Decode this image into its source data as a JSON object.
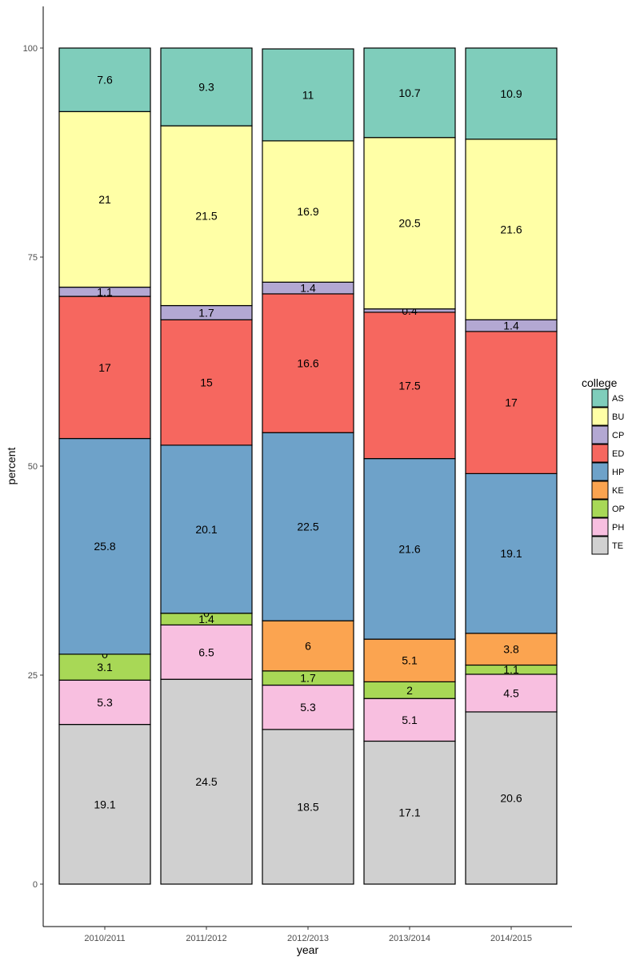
{
  "chart_data": {
    "type": "bar",
    "stacked": true,
    "xlabel": "year",
    "ylabel": "percent",
    "ylim": [
      -4,
      104
    ],
    "yticks": [
      0,
      25,
      50,
      75,
      100
    ],
    "grid": false,
    "legend": {
      "title": "college",
      "placement": "right"
    },
    "categories": [
      "2010/2011",
      "2011/2012",
      "2012/2013",
      "2013/2014",
      "2014/2015"
    ],
    "stack_order": [
      "TE",
      "PH",
      "OP",
      "KE",
      "HP",
      "ED",
      "CP",
      "BU",
      "AS"
    ],
    "series": [
      {
        "name": "AS",
        "color": "#7fcdbb",
        "values": [
          7.6,
          9.3,
          11,
          10.7,
          10.9
        ]
      },
      {
        "name": "BU",
        "color": "#ffffa6",
        "values": [
          21,
          21.5,
          16.9,
          20.5,
          21.6
        ]
      },
      {
        "name": "CP",
        "color": "#b3a8d3",
        "values": [
          1.1,
          1.7,
          1.4,
          0.4,
          1.4
        ]
      },
      {
        "name": "ED",
        "color": "#f6675f",
        "values": [
          17,
          15,
          16.6,
          17.5,
          17
        ]
      },
      {
        "name": "HP",
        "color": "#6ea2c9",
        "values": [
          25.8,
          20.1,
          22.5,
          21.6,
          19.1
        ]
      },
      {
        "name": "KE",
        "color": "#fba450",
        "values": [
          0,
          0,
          6,
          5.1,
          3.8
        ]
      },
      {
        "name": "OP",
        "color": "#a8d856",
        "values": [
          3.1,
          1.4,
          1.7,
          2,
          1.1
        ]
      },
      {
        "name": "PH",
        "color": "#f8bfe0",
        "values": [
          5.3,
          6.5,
          5.3,
          5.1,
          4.5
        ]
      },
      {
        "name": "TE",
        "color": "#d0d0d0",
        "values": [
          19.1,
          24.5,
          18.5,
          17.1,
          20.6
        ]
      }
    ],
    "data_labels": [
      [
        "7.6",
        "21",
        "1.1",
        "17",
        "25.8",
        "0",
        "3.1",
        "5.3",
        "19.1"
      ],
      [
        "9.3",
        "21.5",
        "1.7",
        "15",
        "20.1",
        "0",
        "1.4",
        "6.5",
        "24.5"
      ],
      [
        "11",
        "16.9",
        "1.4",
        "16.6",
        "22.5",
        "6",
        "1.7",
        "5.3",
        "18.5"
      ],
      [
        "10.7",
        "20.5",
        "0.4",
        "17.5",
        "21.6",
        "5.1",
        "2",
        "5.1",
        "17.1"
      ],
      [
        "10.9",
        "21.6",
        "1.4",
        "17",
        "19.1",
        "3.8",
        "1.1",
        "4.5",
        "20.6"
      ]
    ]
  }
}
